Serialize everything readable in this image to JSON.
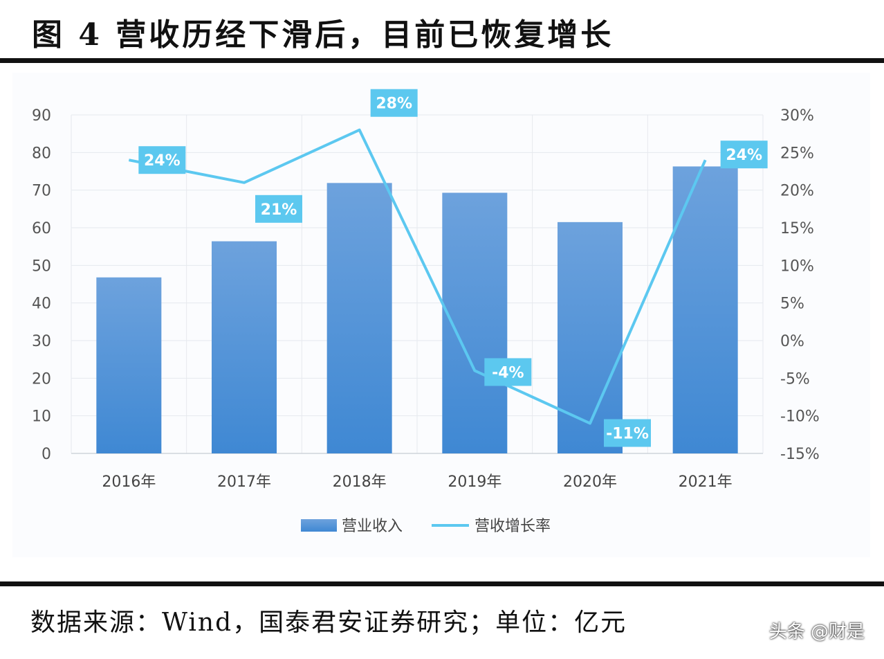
{
  "title": "图 4  营收历经下滑后，目前已恢复增长",
  "source": "数据来源：Wind，国泰君安证券研究；单位：亿元",
  "watermark": "头条 @财是",
  "chart_data": {
    "type": "bar+line",
    "categories": [
      "2016年",
      "2017年",
      "2018年",
      "2019年",
      "2020年",
      "2021年"
    ],
    "series": [
      {
        "name": "营业收入",
        "type": "bar",
        "axis": "left",
        "values": [
          46.8,
          56.4,
          71.9,
          69.3,
          61.5,
          76.3
        ],
        "color": "#4f8fd8"
      },
      {
        "name": "营收增长率",
        "type": "line",
        "axis": "right",
        "values": [
          24,
          21,
          28,
          -4,
          -11,
          24
        ],
        "data_labels": [
          "24%",
          "21%",
          "28%",
          "-4%",
          "-11%",
          "24%"
        ],
        "color": "#5cc8f0"
      }
    ],
    "left_axis": {
      "ylim": [
        0,
        90
      ],
      "ticks": [
        "0",
        "10",
        "20",
        "30",
        "40",
        "50",
        "60",
        "70",
        "80",
        "90"
      ]
    },
    "right_axis": {
      "ylim": [
        -15,
        30
      ],
      "ticks": [
        "-15%",
        "-10%",
        "-5%",
        "0%",
        "5%",
        "10%",
        "15%",
        "20%",
        "25%",
        "30%"
      ]
    },
    "grid": true,
    "legend": "bottom"
  }
}
